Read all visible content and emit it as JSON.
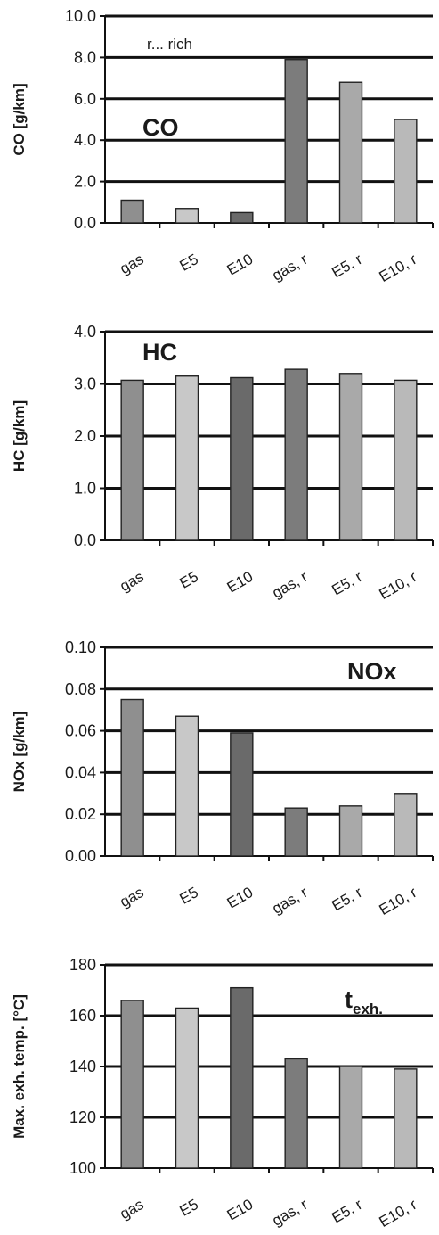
{
  "chart_data": [
    {
      "type": "bar",
      "categories": [
        "gas",
        "E5",
        "E10",
        "gas, r",
        "E5, r",
        "E10, r"
      ],
      "values": [
        1.1,
        0.7,
        0.5,
        7.9,
        6.8,
        5.0
      ],
      "ylabel": "CO [g/km]",
      "panel_label": "CO",
      "annotation": "r... rich",
      "ylim": [
        0,
        10
      ],
      "yticks": [
        "0.0",
        "2.0",
        "4.0",
        "6.0",
        "8.0",
        "10.0"
      ],
      "grid": true
    },
    {
      "type": "bar",
      "categories": [
        "gas",
        "E5",
        "E10",
        "gas, r",
        "E5, r",
        "E10, r"
      ],
      "values": [
        3.07,
        3.15,
        3.12,
        3.28,
        3.2,
        3.07
      ],
      "ylabel": "HC [g/km]",
      "panel_label": "HC",
      "ylim": [
        0,
        4
      ],
      "yticks": [
        "0.0",
        "1.0",
        "2.0",
        "3.0",
        "4.0"
      ],
      "grid": true
    },
    {
      "type": "bar",
      "categories": [
        "gas",
        "E5",
        "E10",
        "gas, r",
        "E5, r",
        "E10, r"
      ],
      "values": [
        0.075,
        0.067,
        0.059,
        0.023,
        0.024,
        0.03
      ],
      "ylabel": "NOx [g/km]",
      "panel_label": "NOx",
      "ylim": [
        0,
        0.1
      ],
      "yticks": [
        "0.00",
        "0.02",
        "0.04",
        "0.06",
        "0.08",
        "0.10"
      ],
      "grid": true
    },
    {
      "type": "bar",
      "categories": [
        "gas",
        "E5",
        "E10",
        "gas, r",
        "E5, r",
        "E10, r"
      ],
      "values": [
        166,
        163,
        171,
        143,
        140,
        139
      ],
      "ylabel": "Max. exh. temp. [°C]",
      "panel_label": "t",
      "panel_label_sub": "exh.",
      "ylim": [
        100,
        180
      ],
      "yticks": [
        "100",
        "120",
        "140",
        "160",
        "180"
      ],
      "grid": true
    }
  ],
  "bar_colors": [
    "#8f8f8f",
    "#c8c8c8",
    "#6a6a6a",
    "#7c7c7c",
    "#a9a9a9",
    "#b9b9b9"
  ],
  "gridline_color": "#111111"
}
